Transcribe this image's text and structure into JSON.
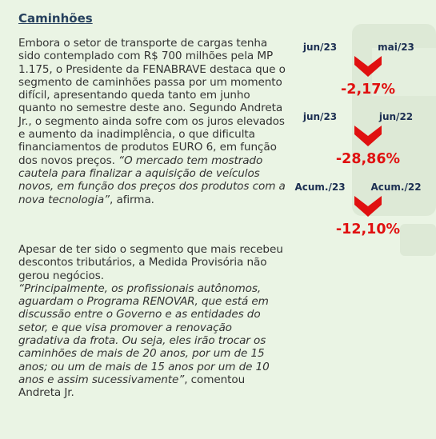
{
  "title": "Caminhões",
  "paragraphs": [
    {
      "intro": "Embora o setor de transporte de cargas tenha sido contemplado com R$ 700 milhões pela MP 1.175, o Presidente da FENABRAVE destaca que o segmento de caminhões passa por um momento difícil, apresentando queda tanto em junho quanto no semestre deste ano. Segundo Andreta Jr., o segmento ainda sofre com os juros elevados e aumento da inadimplência, o que dificulta financiamentos de produtos EURO 6, em função dos novos preços. ",
      "quote": "“O mercado tem mostrado cautela para finalizar a aquisição de veículos novos, em função dos preços dos produtos com a nova tecnologia”",
      "outro": ", afirma."
    },
    {
      "intro": "Apesar de ter sido o segmento que mais recebeu descontos tributários, a Medida Provisória não gerou negócios.",
      "quote": "“Principalmente, os profissionais autônomos, aguardam o Programa RENOVAR, que está em discussão entre o Governo e as entidades do setor, e que visa promover a renovação gradativa da frota. Ou seja, eles irão trocar os caminhões de mais de 20 anos, por um de 15 anos; ou um de mais de 15 anos por um de 10 anos e assim sucessivamente”",
      "outro": ", comentou Andreta Jr."
    }
  ],
  "comparisons": [
    {
      "current": "jun/23",
      "previous": "mai/23",
      "change": "-2,17%"
    },
    {
      "current": "jun/23",
      "previous": "jun/22",
      "change": "-28,86%"
    },
    {
      "current": "Acum./23",
      "previous": "Acum./22",
      "change": "-12,10%"
    }
  ]
}
